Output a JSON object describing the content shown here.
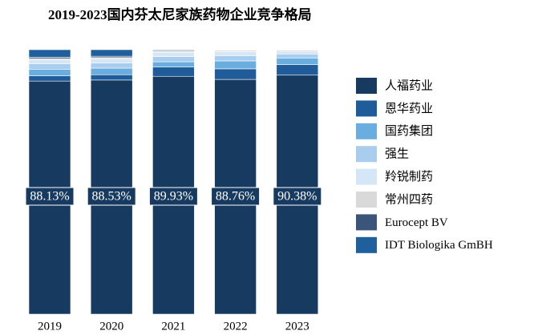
{
  "chart_data": {
    "type": "stacked_bar",
    "title": "2019-2023国内芬太尼家族药物企业竞争格局",
    "categories": [
      "2019",
      "2020",
      "2021",
      "2022",
      "2023"
    ],
    "series": [
      {
        "name": "人福药业",
        "color": "#173a61",
        "values": [
          88.13,
          88.53,
          89.93,
          88.76,
          90.38
        ],
        "value_labels": [
          "88.13%",
          "88.53%",
          "89.93%",
          "88.76%",
          "90.38%"
        ]
      },
      {
        "name": "恩华药业",
        "color": "#1f5c99",
        "values": [
          2,
          2,
          3.5,
          4,
          4
        ]
      },
      {
        "name": "国药集团",
        "color": "#6aaee0",
        "values": [
          2.5,
          2.5,
          2,
          3,
          2.5
        ]
      },
      {
        "name": "强生",
        "color": "#a9cdee",
        "values": [
          2,
          2,
          2,
          2,
          1.5
        ]
      },
      {
        "name": "羚锐制药",
        "color": "#d5e6f6",
        "values": [
          1.5,
          1.5,
          1.5,
          1.5,
          1
        ]
      },
      {
        "name": "常州四药",
        "color": "#d9d9d9",
        "values": [
          0.5,
          0.5,
          0.5,
          0.5,
          0.4
        ]
      },
      {
        "name": "Eurocept BV",
        "color": "#3b5479",
        "values": [
          0.5,
          0.5,
          0.3,
          0.2,
          0.2
        ]
      },
      {
        "name": "IDT Biologika GmBH",
        "color": "#1f5f9c",
        "values": [
          2.87,
          2.47,
          0.27,
          0.04,
          0.02
        ]
      }
    ]
  }
}
